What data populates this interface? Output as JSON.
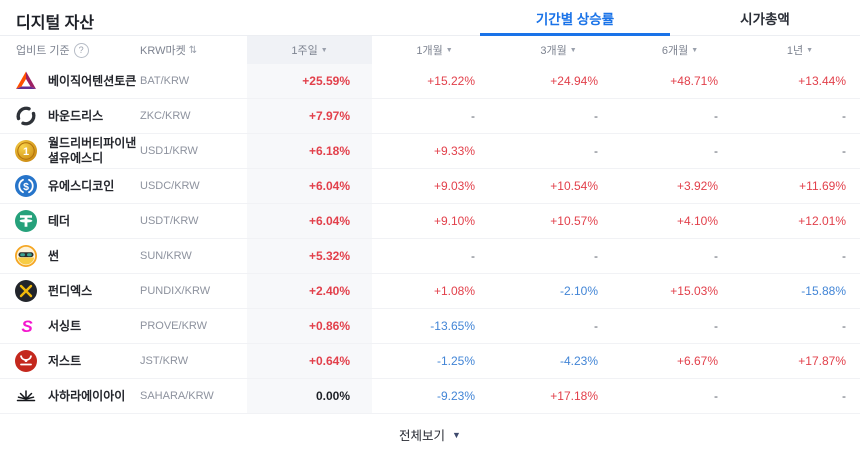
{
  "colors": {
    "up": "#e2404b",
    "down": "#4285d6",
    "accent": "#1a73e8",
    "column_highlight": "#f7f8fa"
  },
  "icons": {
    "help": "?",
    "sort": "⇅",
    "dropdown": "▼",
    "view_all_arrow": "▼"
  },
  "header": {
    "title": "디지털 자산",
    "tabs": [
      {
        "label": "기간별 상승률",
        "active": true
      },
      {
        "label": "시가총액",
        "active": false
      }
    ]
  },
  "table": {
    "base_label": "업비트 기준",
    "market_label": "KRW마켓",
    "periods": [
      "1주일",
      "1개월",
      "3개월",
      "6개월",
      "1년"
    ],
    "rows": [
      {
        "name": "베이직어텐션토큰",
        "pair": "BAT/KRW",
        "icon": "bat",
        "values": [
          {
            "text": "+25.59%",
            "dir": "up"
          },
          {
            "text": "+15.22%",
            "dir": "up"
          },
          {
            "text": "+24.94%",
            "dir": "up"
          },
          {
            "text": "+48.71%",
            "dir": "up"
          },
          {
            "text": "+13.44%",
            "dir": "up"
          }
        ]
      },
      {
        "name": "바운드리스",
        "pair": "ZKC/KRW",
        "icon": "zkc",
        "values": [
          {
            "text": "+7.97%",
            "dir": "up"
          },
          {
            "text": "-",
            "dir": "none"
          },
          {
            "text": "-",
            "dir": "none"
          },
          {
            "text": "-",
            "dir": "none"
          },
          {
            "text": "-",
            "dir": "none"
          }
        ]
      },
      {
        "name": "월드리버티파이낸셜유에스디",
        "pair": "USD1/KRW",
        "icon": "usd1",
        "values": [
          {
            "text": "+6.18%",
            "dir": "up"
          },
          {
            "text": "+9.33%",
            "dir": "up"
          },
          {
            "text": "-",
            "dir": "none"
          },
          {
            "text": "-",
            "dir": "none"
          },
          {
            "text": "-",
            "dir": "none"
          }
        ]
      },
      {
        "name": "유에스디코인",
        "pair": "USDC/KRW",
        "icon": "usdc",
        "values": [
          {
            "text": "+6.04%",
            "dir": "up"
          },
          {
            "text": "+9.03%",
            "dir": "up"
          },
          {
            "text": "+10.54%",
            "dir": "up"
          },
          {
            "text": "+3.92%",
            "dir": "up"
          },
          {
            "text": "+11.69%",
            "dir": "up"
          }
        ]
      },
      {
        "name": "테더",
        "pair": "USDT/KRW",
        "icon": "usdt",
        "values": [
          {
            "text": "+6.04%",
            "dir": "up"
          },
          {
            "text": "+9.10%",
            "dir": "up"
          },
          {
            "text": "+10.57%",
            "dir": "up"
          },
          {
            "text": "+4.10%",
            "dir": "up"
          },
          {
            "text": "+12.01%",
            "dir": "up"
          }
        ]
      },
      {
        "name": "썬",
        "pair": "SUN/KRW",
        "icon": "sun",
        "values": [
          {
            "text": "+5.32%",
            "dir": "up"
          },
          {
            "text": "-",
            "dir": "none"
          },
          {
            "text": "-",
            "dir": "none"
          },
          {
            "text": "-",
            "dir": "none"
          },
          {
            "text": "-",
            "dir": "none"
          }
        ]
      },
      {
        "name": "펀디엑스",
        "pair": "PUNDIX/KRW",
        "icon": "pundix",
        "values": [
          {
            "text": "+2.40%",
            "dir": "up"
          },
          {
            "text": "+1.08%",
            "dir": "up"
          },
          {
            "text": "-2.10%",
            "dir": "down"
          },
          {
            "text": "+15.03%",
            "dir": "up"
          },
          {
            "text": "-15.88%",
            "dir": "down"
          }
        ]
      },
      {
        "name": "서싱트",
        "pair": "PROVE/KRW",
        "icon": "prove",
        "values": [
          {
            "text": "+0.86%",
            "dir": "up"
          },
          {
            "text": "-13.65%",
            "dir": "down"
          },
          {
            "text": "-",
            "dir": "none"
          },
          {
            "text": "-",
            "dir": "none"
          },
          {
            "text": "-",
            "dir": "none"
          }
        ]
      },
      {
        "name": "저스트",
        "pair": "JST/KRW",
        "icon": "jst",
        "values": [
          {
            "text": "+0.64%",
            "dir": "up"
          },
          {
            "text": "-1.25%",
            "dir": "down"
          },
          {
            "text": "-4.23%",
            "dir": "down"
          },
          {
            "text": "+6.67%",
            "dir": "up"
          },
          {
            "text": "+17.87%",
            "dir": "up"
          }
        ]
      },
      {
        "name": "사하라에이아이",
        "pair": "SAHARA/KRW",
        "icon": "sahara",
        "values": [
          {
            "text": "0.00%",
            "dir": "flat"
          },
          {
            "text": "-9.23%",
            "dir": "down"
          },
          {
            "text": "+17.18%",
            "dir": "up"
          },
          {
            "text": "-",
            "dir": "none"
          },
          {
            "text": "-",
            "dir": "none"
          }
        ]
      }
    ]
  },
  "footer": {
    "view_all_label": "전체보기"
  }
}
